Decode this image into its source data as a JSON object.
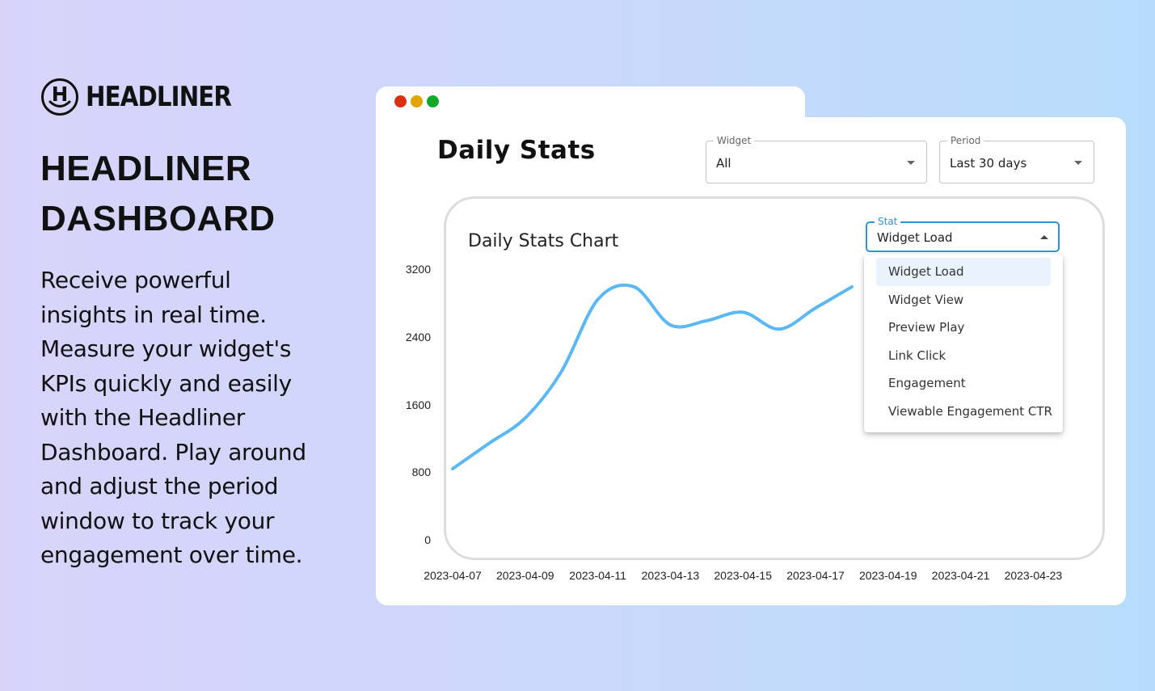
{
  "brand": {
    "logo_text": "HEADLINER",
    "headline_line1": "HEADLINER",
    "headline_line2": "DASHBOARD",
    "description": "Receive powerful insights in real time. Measure your widget's KPIs quickly and easily with the Headliner Dashboard. Play around and adjust the period window to track your engagement over time."
  },
  "window": {
    "title": "Daily Stats",
    "controls": {
      "widget_label": "Widget",
      "widget_value": "All",
      "period_label": "Period",
      "period_value": "Last 30 days"
    }
  },
  "chart_card": {
    "title": "Daily Stats Chart",
    "stat_label": "Stat",
    "stat_value": "Widget Load",
    "dropdown_options": [
      "Widget Load",
      "Widget View",
      "Preview Play",
      "Link Click",
      "Engagement",
      "Viewable Engagement CTR"
    ]
  },
  "colors": {
    "line": "#5bb8f6",
    "accent": "#2a96d8",
    "traffic_red": "#dc2f0e",
    "traffic_yellow": "#e1a500",
    "traffic_green": "#12a82c"
  },
  "chart_data": {
    "type": "line",
    "title": "Daily Stats Chart",
    "xlabel": "",
    "ylabel": "",
    "x_tick_labels": [
      "2023-04-07",
      "2023-04-09",
      "2023-04-11",
      "2023-04-13",
      "2023-04-15",
      "2023-04-17",
      "2023-04-19",
      "2023-04-21",
      "2023-04-23"
    ],
    "y_tick_labels": [
      "0",
      "800",
      "1600",
      "2400",
      "3200"
    ],
    "ylim": [
      0,
      3200
    ],
    "xlim": [
      "2023-04-07",
      "2023-04-23"
    ],
    "grid": false,
    "series": [
      {
        "x": [
          "2023-04-07",
          "2023-04-08",
          "2023-04-09",
          "2023-04-10",
          "2023-04-11",
          "2023-04-12",
          "2023-04-13",
          "2023-04-14",
          "2023-04-15",
          "2023-04-16",
          "2023-04-17",
          "2023-04-18"
        ],
        "values": [
          850,
          1150,
          1450,
          2000,
          2850,
          3000,
          2550,
          2600,
          2700,
          2500,
          2750,
          3000
        ]
      }
    ]
  }
}
